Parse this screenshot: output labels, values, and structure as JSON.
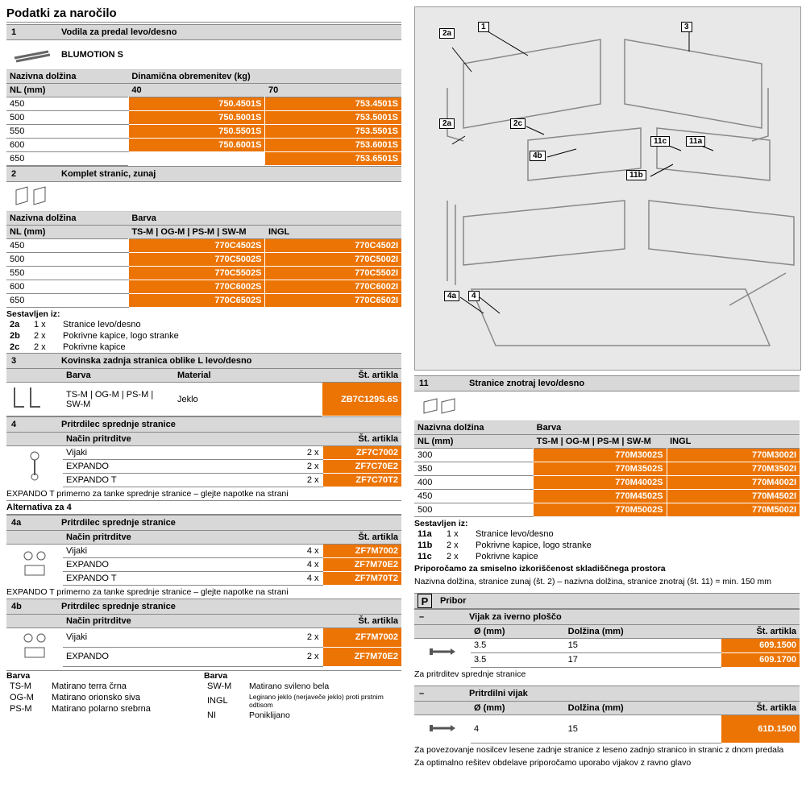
{
  "page_title": "Podatki za naročilo",
  "s1": {
    "num": "1",
    "title": "Vodila za predal levo/desno",
    "subtitle": "BLUMOTION S",
    "col_label": "Nazivna dolžina",
    "col_unit": "NL (mm)",
    "load_label": "Dinamična obremenitev (kg)",
    "loads": [
      "40",
      "70"
    ],
    "rows": [
      {
        "nl": "450",
        "a": "750.4501S",
        "b": "753.4501S"
      },
      {
        "nl": "500",
        "a": "750.5001S",
        "b": "753.5001S"
      },
      {
        "nl": "550",
        "a": "750.5501S",
        "b": "753.5501S"
      },
      {
        "nl": "600",
        "a": "750.6001S",
        "b": "753.6001S"
      },
      {
        "nl": "650",
        "a": "",
        "b": "753.6501S"
      }
    ]
  },
  "s2": {
    "num": "2",
    "title": "Komplet stranic, zunaj",
    "col_label": "Nazivna dolžina",
    "col_unit": "NL (mm)",
    "color_label": "Barva",
    "col_a": "TS-M | OG-M | PS-M | SW-M",
    "col_b": "INGL",
    "rows": [
      {
        "nl": "450",
        "a": "770C4502S",
        "b": "770C4502I"
      },
      {
        "nl": "500",
        "a": "770C5002S",
        "b": "770C5002I"
      },
      {
        "nl": "550",
        "a": "770C5502S",
        "b": "770C5502I"
      },
      {
        "nl": "600",
        "a": "770C6002S",
        "b": "770C6002I"
      },
      {
        "nl": "650",
        "a": "770C6502S",
        "b": "770C6502I"
      }
    ],
    "consists_label": "Sestavljen iz:",
    "consists": [
      {
        "id": "2a",
        "qty": "1 x",
        "txt": "Stranice levo/desno"
      },
      {
        "id": "2b",
        "qty": "2 x",
        "txt": "Pokrivne kapice, logo stranke"
      },
      {
        "id": "2c",
        "qty": "2 x",
        "txt": "Pokrivne kapice"
      }
    ]
  },
  "s3": {
    "num": "3",
    "title": "Kovinska zadnja stranica oblike L levo/desno",
    "h_color": "Barva",
    "h_mat": "Material",
    "h_art": "Št. artikla",
    "color": "TS-M | OG-M | PS-M | SW-M",
    "mat": "Jeklo",
    "art": "ZB7C129S.6S"
  },
  "s4": {
    "num": "4",
    "title": "Pritrdilec sprednje stranice",
    "h_method": "Način pritrditve",
    "h_art": "Št. artikla",
    "rows": [
      {
        "method": "Vijaki",
        "qty": "2 x",
        "art": "ZF7C7002"
      },
      {
        "method": "EXPANDO",
        "qty": "2 x",
        "art": "ZF7C70E2"
      },
      {
        "method": "EXPANDO T",
        "qty": "2 x",
        "art": "ZF7C70T2"
      }
    ],
    "note": "EXPANDO T primerno za tanke sprednje stranice – glejte napotke na strani"
  },
  "alt_label": "Alternativa za 4",
  "s4a": {
    "num": "4a",
    "title": "Pritrdilec sprednje stranice",
    "h_method": "Način pritrditve",
    "h_art": "Št. artikla",
    "rows": [
      {
        "method": "Vijaki",
        "qty": "4 x",
        "art": "ZF7M7002"
      },
      {
        "method": "EXPANDO",
        "qty": "4 x",
        "art": "ZF7M70E2"
      },
      {
        "method": "EXPANDO T",
        "qty": "4 x",
        "art": "ZF7M70T2"
      }
    ],
    "note": "EXPANDO T primerno za tanke sprednje stranice – glejte napotke na strani"
  },
  "s4b": {
    "num": "4b",
    "title": "Pritrdilec sprednje stranice",
    "h_method": "Način pritrditve",
    "h_art": "Št. artikla",
    "rows": [
      {
        "method": "Vijaki",
        "qty": "2 x",
        "art": "ZF7M7002"
      },
      {
        "method": "EXPANDO",
        "qty": "2 x",
        "art": "ZF7M70E2"
      }
    ]
  },
  "color_legend": {
    "h": "Barva",
    "rows_l": [
      {
        "c": "TS-M",
        "t": "Matirano terra črna"
      },
      {
        "c": "OG-M",
        "t": "Matirano orionsko siva"
      },
      {
        "c": "PS-M",
        "t": "Matirano polarno srebrna"
      }
    ],
    "rows_r": [
      {
        "c": "SW-M",
        "t": "Matirano svileno bela"
      },
      {
        "c": "INGL",
        "t": "Legirano jeklo (nerjaveče jeklo) proti prstnim odtisom"
      },
      {
        "c": "NI",
        "t": "Poniklijano"
      }
    ]
  },
  "diagram_labels": [
    "2a",
    "1",
    "3",
    "2a",
    "2c",
    "4b",
    "11c",
    "11a",
    "11b",
    "4a",
    "4"
  ],
  "s11": {
    "num": "11",
    "title": "Stranice znotraj levo/desno",
    "col_label": "Nazivna dolžina",
    "col_unit": "NL (mm)",
    "color_label": "Barva",
    "col_a": "TS-M | OG-M | PS-M | SW-M",
    "col_b": "INGL",
    "rows": [
      {
        "nl": "300",
        "a": "770M3002S",
        "b": "770M3002I"
      },
      {
        "nl": "350",
        "a": "770M3502S",
        "b": "770M3502I"
      },
      {
        "nl": "400",
        "a": "770M4002S",
        "b": "770M4002I"
      },
      {
        "nl": "450",
        "a": "770M4502S",
        "b": "770M4502I"
      },
      {
        "nl": "500",
        "a": "770M5002S",
        "b": "770M5002I"
      }
    ],
    "consists_label": "Sestavljen iz:",
    "consists": [
      {
        "id": "11a",
        "qty": "1 x",
        "txt": "Stranice levo/desno"
      },
      {
        "id": "11b",
        "qty": "2 x",
        "txt": "Pokrivne kapice, logo stranke"
      },
      {
        "id": "11c",
        "qty": "2 x",
        "txt": "Pokrivne kapice"
      }
    ],
    "rec1": "Priporočamo za smiselno izkoriščenost skladiščnega prostora",
    "rec2": "Nazivna dolžina, stranice zunaj (št. 2) – nazivna dolžina, stranice znotraj (št. 11) = min. 150 mm"
  },
  "pribor": {
    "icon": "P",
    "title": "Pribor",
    "screw1": {
      "num": "–",
      "title": "Vijak za iverno ploščo",
      "h_d": "Ø (mm)",
      "h_l": "Dolžina (mm)",
      "h_art": "Št. artikla",
      "rows": [
        {
          "d": "3.5",
          "l": "15",
          "art": "609.1500"
        },
        {
          "d": "3.5",
          "l": "17",
          "art": "609.1700"
        }
      ],
      "note": "Za pritrditev sprednje stranice"
    },
    "screw2": {
      "num": "–",
      "title": "Pritrdilni vijak",
      "h_d": "Ø (mm)",
      "h_l": "Dolžina (mm)",
      "h_art": "Št. artikla",
      "rows": [
        {
          "d": "4",
          "l": "15",
          "art": "61D.1500"
        }
      ],
      "note1": "Za povezovanje nosilcev lesene zadnje stranice z leseno zadnjo stranico in stranic z dnom predala",
      "note2": "Za optimalno rešitev obdelave priporočamo uporabo vijakov z ravno glavo"
    }
  }
}
